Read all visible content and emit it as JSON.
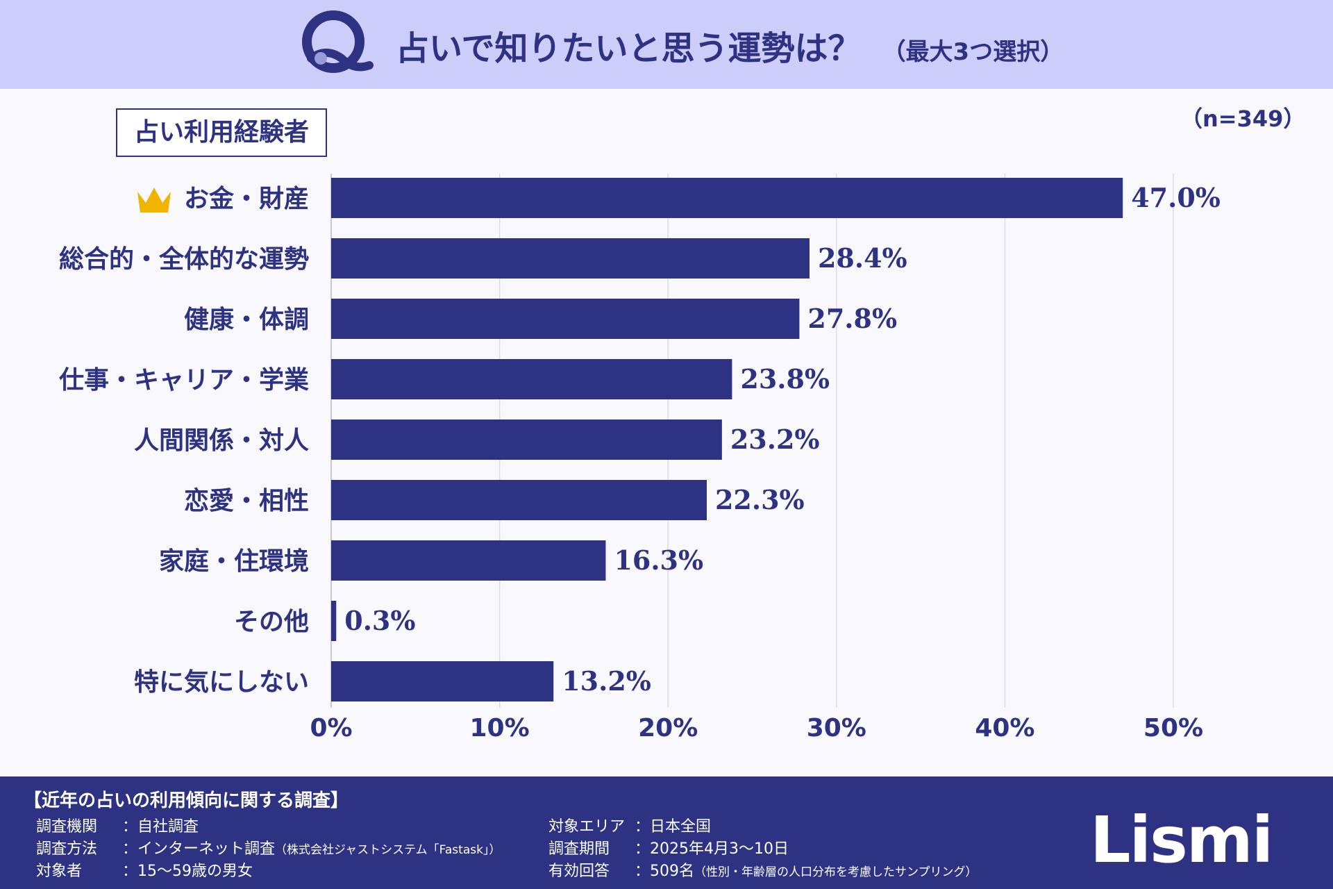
{
  "header": {
    "title": "占いで知りたいと思う運勢は？",
    "subtitle": "（最大3つ選択）"
  },
  "group_label": "占い利用経験者",
  "sample_size": "（n=349）",
  "chart_data": {
    "type": "bar",
    "orientation": "horizontal",
    "categories": [
      "お金・財産",
      "総合的・全体的な運勢",
      "健康・体調",
      "仕事・キャリア・学業",
      "人間関係・対人",
      "恋愛・相性",
      "家庭・住環境",
      "その他",
      "特に気にしない"
    ],
    "values": [
      47.0,
      28.4,
      27.8,
      23.8,
      23.2,
      22.3,
      16.3,
      0.3,
      13.2
    ],
    "value_labels": [
      "47.0%",
      "28.4%",
      "27.8%",
      "23.8%",
      "23.2%",
      "22.3%",
      "16.3%",
      "0.3%",
      "13.2%"
    ],
    "xlim": [
      0,
      50
    ],
    "ticks": [
      "0%",
      "10%",
      "20%",
      "30%",
      "40%",
      "50%"
    ],
    "grid": true,
    "bar_color": "#2d3282",
    "highlight_icon": "crown-icon"
  },
  "footer": {
    "title": "【近年の占いの利用傾向に関する調査】",
    "rows_left": [
      {
        "key": "調査機関",
        "value": "：自社調査",
        "note": ""
      },
      {
        "key": "調査方法",
        "value": "：インターネット調査",
        "note": "（株式会社ジャストシステム「Fastask」）"
      },
      {
        "key": "対象者",
        "value": "：15〜59歳の男女",
        "note": ""
      }
    ],
    "rows_right": [
      {
        "key": "対象エリア",
        "value": "：日本全国",
        "note": ""
      },
      {
        "key": "調査期間",
        "value": "：2025年4月3〜10日",
        "note": ""
      },
      {
        "key": "有効回答",
        "value": "：509名",
        "note": "（性別・年齢層の人口分布を考慮したサンプリング）"
      }
    ],
    "logo": "Lismi"
  },
  "colors": {
    "navy": "#2d3282",
    "header_bg": "#cdcdfa",
    "gold": "#f0b400"
  }
}
